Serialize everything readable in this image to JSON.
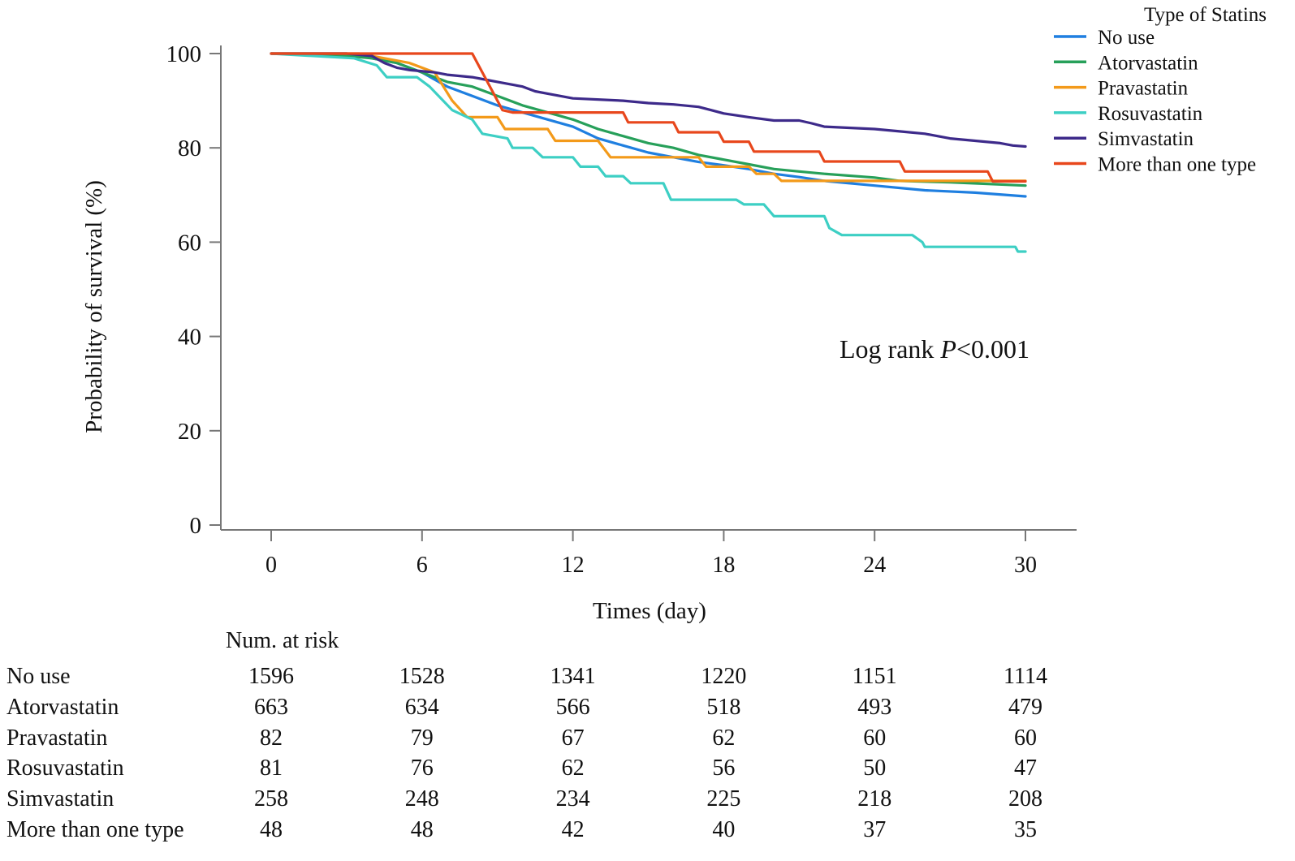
{
  "chart_data": {
    "type": "line",
    "subtype": "kaplan-meier",
    "title": "",
    "xlabel": "Times (day)",
    "ylabel": "Probability of survival (%)",
    "xlim": [
      0,
      30
    ],
    "ylim": [
      0,
      100
    ],
    "xticks": [
      "0",
      "6",
      "12",
      "18",
      "24",
      "30"
    ],
    "yticks": [
      "0",
      "20",
      "40",
      "60",
      "80",
      "100"
    ],
    "legend_title": "Type of Statins",
    "legend_position": "top-right",
    "annotation": {
      "prefix": "Log rank ",
      "italic": "P",
      "suffix": "<0.001"
    },
    "series": [
      {
        "name": "No use",
        "color": "#1f7fe0",
        "points": [
          [
            0,
            100
          ],
          [
            3,
            100
          ],
          [
            4,
            99
          ],
          [
            5,
            98
          ],
          [
            6,
            96
          ],
          [
            7,
            93
          ],
          [
            8,
            91
          ],
          [
            9,
            89
          ],
          [
            10,
            87.5
          ],
          [
            11,
            86
          ],
          [
            12,
            84.5
          ],
          [
            13,
            82
          ],
          [
            14,
            80.5
          ],
          [
            15,
            79
          ],
          [
            16,
            78
          ],
          [
            17,
            77
          ],
          [
            18,
            76.3
          ],
          [
            19,
            75.5
          ],
          [
            20,
            74.5
          ],
          [
            21,
            73.8
          ],
          [
            22,
            73
          ],
          [
            24,
            72
          ],
          [
            26,
            71
          ],
          [
            28,
            70.5
          ],
          [
            30,
            69.7
          ]
        ]
      },
      {
        "name": "Atorvastatin",
        "color": "#27a05a",
        "points": [
          [
            0,
            100
          ],
          [
            3,
            99.5
          ],
          [
            4,
            99
          ],
          [
            5,
            98
          ],
          [
            6,
            96
          ],
          [
            7,
            94
          ],
          [
            8,
            93
          ],
          [
            9,
            91
          ],
          [
            10,
            89
          ],
          [
            11,
            87.5
          ],
          [
            12,
            86
          ],
          [
            13,
            84
          ],
          [
            14,
            82.5
          ],
          [
            15,
            81
          ],
          [
            16,
            80
          ],
          [
            17,
            78.5
          ],
          [
            18,
            77.5
          ],
          [
            19,
            76.5
          ],
          [
            20,
            75.5
          ],
          [
            21,
            75
          ],
          [
            22,
            74.5
          ],
          [
            24,
            73.7
          ],
          [
            25,
            73
          ],
          [
            27,
            72.7
          ],
          [
            30,
            72
          ]
        ]
      },
      {
        "name": "Pravastatin",
        "color": "#f39a1a",
        "points": [
          [
            0,
            100
          ],
          [
            3.5,
            100
          ],
          [
            4.5,
            99
          ],
          [
            5.5,
            98
          ],
          [
            6.5,
            96
          ],
          [
            7.2,
            90
          ],
          [
            7.8,
            86.5
          ],
          [
            9,
            86.5
          ],
          [
            9.3,
            84
          ],
          [
            11,
            84
          ],
          [
            11.3,
            81.5
          ],
          [
            13,
            81.5
          ],
          [
            13.5,
            78
          ],
          [
            17,
            78
          ],
          [
            17.3,
            76
          ],
          [
            19,
            76
          ],
          [
            19.3,
            74.5
          ],
          [
            20,
            74.5
          ],
          [
            20.3,
            73
          ],
          [
            30,
            73
          ]
        ]
      },
      {
        "name": "Rosuvastatin",
        "color": "#3dcfc4",
        "points": [
          [
            0,
            100
          ],
          [
            3.3,
            99
          ],
          [
            4.2,
            97.5
          ],
          [
            4.6,
            95
          ],
          [
            5.8,
            95
          ],
          [
            6.3,
            93
          ],
          [
            7.2,
            88
          ],
          [
            8,
            86
          ],
          [
            8.4,
            83
          ],
          [
            9.4,
            82
          ],
          [
            9.6,
            80
          ],
          [
            10.4,
            80
          ],
          [
            10.8,
            78
          ],
          [
            12,
            78
          ],
          [
            12.3,
            76
          ],
          [
            13,
            76
          ],
          [
            13.3,
            74
          ],
          [
            14,
            74
          ],
          [
            14.3,
            72.5
          ],
          [
            15.6,
            72.5
          ],
          [
            15.9,
            69
          ],
          [
            18.5,
            69
          ],
          [
            18.8,
            68
          ],
          [
            19.6,
            68
          ],
          [
            20,
            65.5
          ],
          [
            22,
            65.5
          ],
          [
            22.2,
            63
          ],
          [
            22.7,
            61.5
          ],
          [
            25.5,
            61.5
          ],
          [
            25.9,
            60
          ],
          [
            26,
            59
          ],
          [
            29.6,
            59
          ],
          [
            29.7,
            58
          ],
          [
            30,
            58
          ]
        ]
      },
      {
        "name": "Simvastatin",
        "color": "#3d2a8a",
        "points": [
          [
            0,
            100
          ],
          [
            3,
            100
          ],
          [
            4,
            99.5
          ],
          [
            4.5,
            98
          ],
          [
            5,
            97
          ],
          [
            5.5,
            96.5
          ],
          [
            6.5,
            96
          ],
          [
            7,
            95.5
          ],
          [
            8,
            95
          ],
          [
            8.5,
            94.5
          ],
          [
            9,
            94
          ],
          [
            10,
            93
          ],
          [
            10.5,
            92
          ],
          [
            11,
            91.5
          ],
          [
            11.5,
            91
          ],
          [
            12,
            90.5
          ],
          [
            14,
            90
          ],
          [
            15,
            89.5
          ],
          [
            16,
            89.2
          ],
          [
            17,
            88.7
          ],
          [
            17.5,
            88
          ],
          [
            18,
            87.3
          ],
          [
            19,
            86.5
          ],
          [
            20,
            85.8
          ],
          [
            21,
            85.8
          ],
          [
            21.5,
            85.2
          ],
          [
            22,
            84.5
          ],
          [
            24,
            84
          ],
          [
            25,
            83.5
          ],
          [
            26,
            83
          ],
          [
            27,
            82
          ],
          [
            28,
            81.5
          ],
          [
            29,
            81
          ],
          [
            29.5,
            80.5
          ],
          [
            30,
            80.3
          ]
        ]
      },
      {
        "name": "More than one type",
        "color": "#e8471c",
        "points": [
          [
            0,
            100
          ],
          [
            8,
            100
          ],
          [
            8.2,
            98
          ],
          [
            8.4,
            96
          ],
          [
            8.6,
            94
          ],
          [
            8.8,
            92
          ],
          [
            9,
            90
          ],
          [
            9.2,
            88
          ],
          [
            9.6,
            87.5
          ],
          [
            14,
            87.5
          ],
          [
            14.2,
            85.4
          ],
          [
            16,
            85.4
          ],
          [
            16.2,
            83.3
          ],
          [
            17.8,
            83.3
          ],
          [
            18,
            81.3
          ],
          [
            19,
            81.3
          ],
          [
            19.2,
            79.2
          ],
          [
            21.8,
            79.2
          ],
          [
            22,
            77.1
          ],
          [
            25,
            77.1
          ],
          [
            25.2,
            75
          ],
          [
            28.5,
            75
          ],
          [
            28.7,
            72.9
          ],
          [
            30,
            72.9
          ]
        ]
      }
    ],
    "risk_table": {
      "title": "Num. at risk",
      "timepoints": [
        0,
        6,
        12,
        18,
        24,
        30
      ],
      "rows": [
        {
          "label": "No use",
          "values": [
            "1596",
            "1528",
            "1341",
            "1220",
            "1151",
            "1114"
          ]
        },
        {
          "label": "Atorvastatin",
          "values": [
            "663",
            "634",
            "566",
            "518",
            "493",
            "479"
          ]
        },
        {
          "label": "Pravastatin",
          "values": [
            "82",
            "79",
            "67",
            "62",
            "60",
            "60"
          ]
        },
        {
          "label": "Rosuvastatin",
          "values": [
            "81",
            "76",
            "62",
            "56",
            "50",
            "47"
          ]
        },
        {
          "label": "Simvastatin",
          "values": [
            "258",
            "248",
            "234",
            "225",
            "218",
            "208"
          ]
        },
        {
          "label": "More than one type",
          "values": [
            "48",
            "48",
            "42",
            "40",
            "37",
            "35"
          ]
        }
      ]
    }
  }
}
